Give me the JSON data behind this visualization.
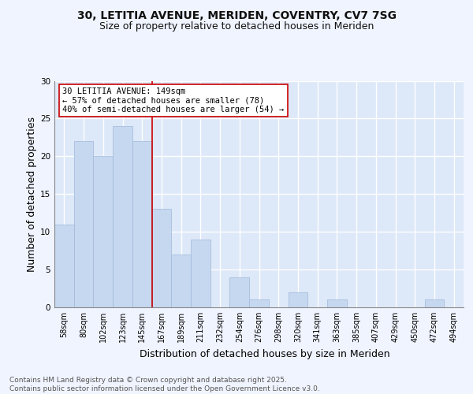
{
  "title_line1": "30, LETITIA AVENUE, MERIDEN, COVENTRY, CV7 7SG",
  "title_line2": "Size of property relative to detached houses in Meriden",
  "xlabel": "Distribution of detached houses by size in Meriden",
  "ylabel": "Number of detached properties",
  "categories": [
    "58sqm",
    "80sqm",
    "102sqm",
    "123sqm",
    "145sqm",
    "167sqm",
    "189sqm",
    "211sqm",
    "232sqm",
    "254sqm",
    "276sqm",
    "298sqm",
    "320sqm",
    "341sqm",
    "363sqm",
    "385sqm",
    "407sqm",
    "429sqm",
    "450sqm",
    "472sqm",
    "494sqm"
  ],
  "values": [
    11,
    22,
    20,
    24,
    22,
    13,
    7,
    9,
    0,
    4,
    1,
    0,
    2,
    0,
    1,
    0,
    0,
    0,
    0,
    1,
    0
  ],
  "bar_color": "#c5d8f0",
  "bar_edgecolor": "#a0b8d8",
  "vline_x_index": 4,
  "vline_color": "#cc0000",
  "annotation_line1": "30 LETITIA AVENUE: 149sqm",
  "annotation_line2": "← 57% of detached houses are smaller (78)",
  "annotation_line3": "40% of semi-detached houses are larger (54) →",
  "annotation_box_edgecolor": "#cc0000",
  "annotation_box_facecolor": "#ffffff",
  "ylim": [
    0,
    30
  ],
  "yticks": [
    0,
    5,
    10,
    15,
    20,
    25,
    30
  ],
  "footer_text": "Contains HM Land Registry data © Crown copyright and database right 2025.\nContains public sector information licensed under the Open Government Licence v3.0.",
  "background_color": "#dde8f8",
  "grid_color": "#ffffff",
  "fig_background": "#f0f4ff",
  "title_fontsize": 10,
  "subtitle_fontsize": 9,
  "axis_label_fontsize": 9,
  "tick_fontsize": 7,
  "footer_fontsize": 6.5,
  "annotation_fontsize": 7.5
}
